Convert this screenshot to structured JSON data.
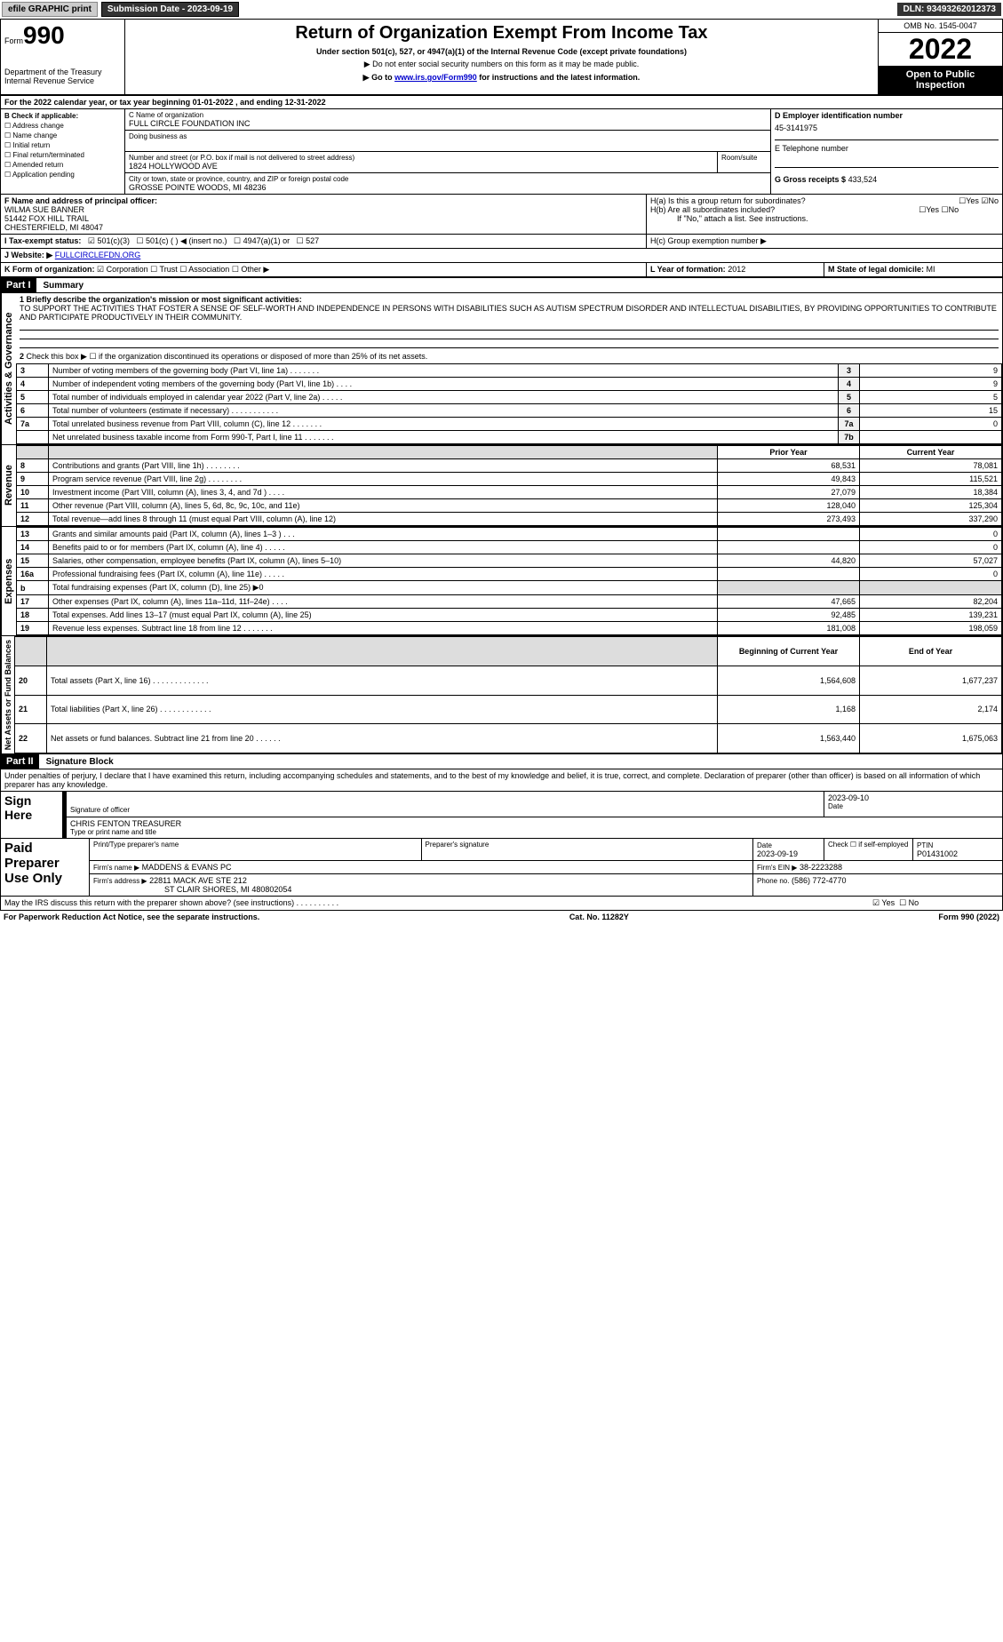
{
  "header": {
    "efile": "efile GRAPHIC print",
    "subdate_lbl": "Submission Date - 2023-09-19",
    "dln": "DLN: 93493262012373"
  },
  "form": {
    "form_lbl": "Form",
    "num": "990",
    "dept1": "Department of the Treasury",
    "dept2": "Internal Revenue Service",
    "title": "Return of Organization Exempt From Income Tax",
    "sub1": "Under section 501(c), 527, or 4947(a)(1) of the Internal Revenue Code (except private foundations)",
    "sub2": "▶ Do not enter social security numbers on this form as it may be made public.",
    "sub3_pre": "▶ Go to ",
    "sub3_link": "www.irs.gov/Form990",
    "sub3_post": " for instructions and the latest information.",
    "omb": "OMB No. 1545-0047",
    "year": "2022",
    "otp": "Open to Public Inspection"
  },
  "a": "For the 2022 calendar year, or tax year beginning 01-01-2022    , and ending 12-31-2022",
  "b": {
    "label": "B Check if applicable:",
    "items": [
      "Address change",
      "Name change",
      "Initial return",
      "Final return/terminated",
      "Amended return",
      "Application pending"
    ]
  },
  "c": {
    "name_lbl": "C Name of organization",
    "name": "FULL CIRCLE FOUNDATION INC",
    "dba": "Doing business as",
    "addr_lbl": "Number and street (or P.O. box if mail is not delivered to street address)",
    "room_lbl": "Room/suite",
    "addr": "1824 HOLLYWOOD AVE",
    "city_lbl": "City or town, state or province, country, and ZIP or foreign postal code",
    "city": "GROSSE POINTE WOODS, MI  48236"
  },
  "d": {
    "lbl": "D Employer identification number",
    "val": "45-3141975"
  },
  "e": {
    "lbl": "E Telephone number"
  },
  "g": {
    "lbl": "G Gross receipts $",
    "val": "433,524"
  },
  "f": {
    "lbl": "F  Name and address of principal officer:",
    "name": "WILMA SUE BANNER",
    "addr1": "51442 FOX HILL TRAIL",
    "addr2": "CHESTERFIELD, MI  48047"
  },
  "h": {
    "a": "H(a)  Is this a group return for subordinates?",
    "b": "H(b)  Are all subordinates included?",
    "note": "If \"No,\" attach a list. See instructions.",
    "c": "H(c)  Group exemption number ▶",
    "yes": "Yes",
    "no": "No"
  },
  "i": {
    "lbl": "I  Tax-exempt status:",
    "s1": "501(c)(3)",
    "s2": "501(c) (  ) ◀ (insert no.)",
    "s3": "4947(a)(1) or",
    "s4": "527"
  },
  "j": {
    "lbl": "J  Website: ▶",
    "val": "FULLCIRCLEFDN.ORG"
  },
  "k": {
    "lbl": "K Form of organization:",
    "c": "Corporation",
    "t": "Trust",
    "a": "Association",
    "o": "Other ▶"
  },
  "l": {
    "lbl": "L Year of formation:",
    "val": "2012"
  },
  "m": {
    "lbl": "M State of legal domicile:",
    "val": "MI"
  },
  "part1": {
    "hdr": "Part I",
    "sub": "Summary",
    "l1_lbl": "1 Briefly describe the organization's mission or most significant activities:",
    "l1": "TO SUPPORT THE ACTIVITIES THAT FOSTER A SENSE OF SELF-WORTH AND INDEPENDENCE IN PERSONS WITH DISABILITIES SUCH AS AUTISM SPECTRUM DISORDER AND INTELLECTUAL DISABILITIES, BY PROVIDING OPPORTUNITIES TO CONTRIBUTE AND PARTICIPATE PRODUCTIVELY IN THEIR COMMUNITY.",
    "l2": "Check this box ▶ ☐  if the organization discontinued its operations or disposed of more than 25% of its net assets.",
    "sec_ag": "Activities & Governance",
    "sec_rev": "Revenue",
    "sec_exp": "Expenses",
    "sec_net": "Net Assets or Fund Balances",
    "rows_ag": [
      {
        "n": "3",
        "t": "Number of voting members of the governing body (Part VI, line 1a)  .    .    .    .    .    .    .",
        "b": "3",
        "v": "9"
      },
      {
        "n": "4",
        "t": "Number of independent voting members of the governing body (Part VI, line 1b)  .    .    .    .",
        "b": "4",
        "v": "9"
      },
      {
        "n": "5",
        "t": "Total number of individuals employed in calendar year 2022 (Part V, line 2a)  .    .    .    .    .",
        "b": "5",
        "v": "5"
      },
      {
        "n": "6",
        "t": "Total number of volunteers (estimate if necessary)   .    .    .    .    .    .    .    .    .    .    .",
        "b": "6",
        "v": "15"
      },
      {
        "n": "7a",
        "t": "Total unrelated business revenue from Part VIII, column (C), line 12   .    .    .    .    .    .    .",
        "b": "7a",
        "v": "0"
      },
      {
        "n": "",
        "t": "Net unrelated business taxable income from Form 990-T, Part I, line 11  .    .    .    .    .    .    .",
        "b": "7b",
        "v": ""
      }
    ],
    "hdr_py": "Prior Year",
    "hdr_cy": "Current Year",
    "rows_rev": [
      {
        "n": "8",
        "t": "Contributions and grants (Part VIII, line 1h)   .    .    .    .    .    .    .    .",
        "py": "68,531",
        "cy": "78,081"
      },
      {
        "n": "9",
        "t": "Program service revenue (Part VIII, line 2g)   .    .    .    .    .    .    .    .",
        "py": "49,843",
        "cy": "115,521"
      },
      {
        "n": "10",
        "t": "Investment income (Part VIII, column (A), lines 3, 4, and 7d )   .    .    .    .",
        "py": "27,079",
        "cy": "18,384"
      },
      {
        "n": "11",
        "t": "Other revenue (Part VIII, column (A), lines 5, 6d, 8c, 9c, 10c, and 11e)",
        "py": "128,040",
        "cy": "125,304"
      },
      {
        "n": "12",
        "t": "Total revenue—add lines 8 through 11 (must equal Part VIII, column (A), line 12)",
        "py": "273,493",
        "cy": "337,290"
      }
    ],
    "rows_exp": [
      {
        "n": "13",
        "t": "Grants and similar amounts paid (Part IX, column (A), lines 1–3 )  .    .    .",
        "py": "",
        "cy": "0"
      },
      {
        "n": "14",
        "t": "Benefits paid to or for members (Part IX, column (A), line 4)  .    .    .    .    .",
        "py": "",
        "cy": "0"
      },
      {
        "n": "15",
        "t": "Salaries, other compensation, employee benefits (Part IX, column (A), lines 5–10)",
        "py": "44,820",
        "cy": "57,027"
      },
      {
        "n": "16a",
        "t": "Professional fundraising fees (Part IX, column (A), line 11e)   .    .    .    .    .",
        "py": "",
        "cy": "0"
      },
      {
        "n": "b",
        "t": "Total fundraising expenses (Part IX, column (D), line 25) ▶0",
        "py": "SHADE",
        "cy": "SHADE"
      },
      {
        "n": "17",
        "t": "Other expenses (Part IX, column (A), lines 11a–11d, 11f–24e)   .    .    .    .",
        "py": "47,665",
        "cy": "82,204"
      },
      {
        "n": "18",
        "t": "Total expenses. Add lines 13–17 (must equal Part IX, column (A), line 25)",
        "py": "92,485",
        "cy": "139,231"
      },
      {
        "n": "19",
        "t": "Revenue less expenses. Subtract line 18 from line 12  .    .    .    .    .    .    .",
        "py": "181,008",
        "cy": "198,059"
      }
    ],
    "hdr_bcy": "Beginning of Current Year",
    "hdr_eoy": "End of Year",
    "rows_net": [
      {
        "n": "20",
        "t": "Total assets (Part X, line 16)  .    .    .    .    .    .    .    .    .    .    .    .    .",
        "py": "1,564,608",
        "cy": "1,677,237"
      },
      {
        "n": "21",
        "t": "Total liabilities (Part X, line 26)  .    .    .    .    .    .    .    .    .    .    .    .",
        "py": "1,168",
        "cy": "2,174"
      },
      {
        "n": "22",
        "t": "Net assets or fund balances. Subtract line 21 from line 20  .    .    .    .    .    .",
        "py": "1,563,440",
        "cy": "1,675,063"
      }
    ]
  },
  "part2": {
    "hdr": "Part II",
    "sub": "Signature Block",
    "decl": "Under penalties of perjury, I declare that I have examined this return, including accompanying schedules and statements, and to the best of my knowledge and belief, it is true, correct, and complete. Declaration of preparer (other than officer) is based on all information of which preparer has any knowledge.",
    "sign_here": "Sign Here",
    "sig_off": "Signature of officer",
    "date_lbl": "Date",
    "date": "2023-09-10",
    "typed": "CHRIS FENTON  TREASURER",
    "typed_lbl": "Type or print name and title",
    "paid": "Paid Preparer Use Only",
    "pp_name_lbl": "Print/Type preparer's name",
    "pp_sig_lbl": "Preparer's signature",
    "pp_date": "2023-09-19",
    "pp_chk": "Check ☐ if self-employed",
    "ptin_lbl": "PTIN",
    "ptin": "P01431002",
    "firm_lbl": "Firm's name    ▶",
    "firm": "MADDENS & EVANS PC",
    "ein_lbl": "Firm's EIN ▶",
    "ein": "38-2223288",
    "faddr_lbl": "Firm's address ▶",
    "faddr1": "22811 MACK AVE STE 212",
    "faddr2": "ST CLAIR SHORES, MI  480802054",
    "phone_lbl": "Phone no.",
    "phone": "(586) 772-4770",
    "discuss": "May the IRS discuss this return with the preparer shown above? (see instructions)   .    .    .    .    .    .    .    .    .    .",
    "yes": "Yes",
    "no": "No"
  },
  "footer": {
    "pra": "For Paperwork Reduction Act Notice, see the separate instructions.",
    "cat": "Cat. No. 11282Y",
    "form": "Form 990 (2022)"
  }
}
